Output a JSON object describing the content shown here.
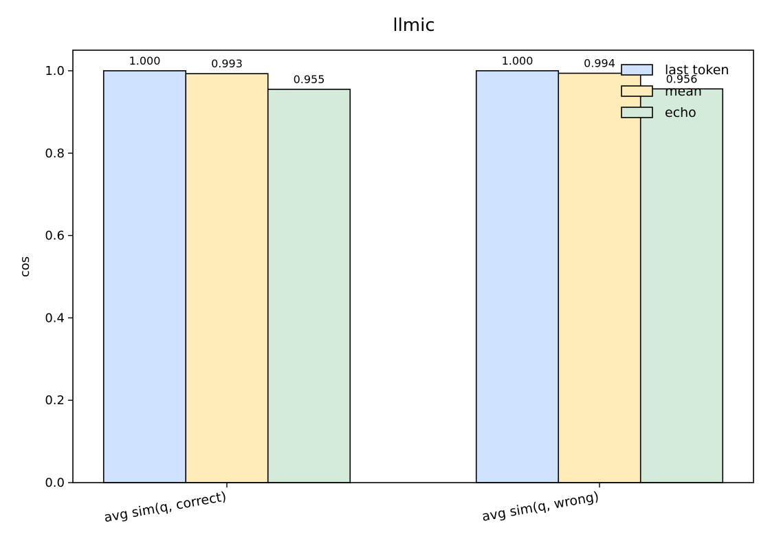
{
  "chart_data": {
    "type": "bar",
    "title": "llmic",
    "xlabel": "",
    "ylabel": "cos",
    "ylim": [
      0,
      1.05
    ],
    "yticks": [
      "0.0",
      "0.2",
      "0.4",
      "0.6",
      "0.8",
      "1.0"
    ],
    "categories": [
      "avg sim(q, correct)",
      "avg sim(q, wrong)"
    ],
    "series": [
      {
        "name": "last token",
        "color": "#cfe2ff",
        "values": [
          1.0,
          1.0
        ],
        "labels": [
          "1.000",
          "1.000"
        ]
      },
      {
        "name": "mean",
        "color": "#ffecb8",
        "values": [
          0.993,
          0.994
        ],
        "labels": [
          "0.993",
          "0.994"
        ]
      },
      {
        "name": "echo",
        "color": "#d4ebd9",
        "values": [
          0.955,
          0.956
        ],
        "labels": [
          "0.955",
          "0.956"
        ]
      }
    ],
    "legend_position": "top-right",
    "grid": false,
    "edge_color": "#000000"
  }
}
